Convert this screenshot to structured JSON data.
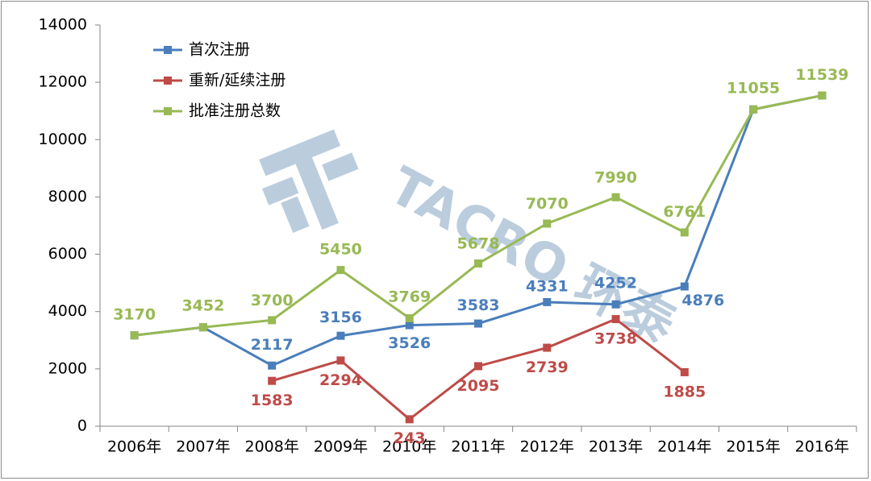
{
  "chart_data": {
    "type": "line",
    "categories": [
      "2006年",
      "2007年",
      "2008年",
      "2009年",
      "2010年",
      "2011年",
      "2012年",
      "2013年",
      "2014年",
      "2015年",
      "2016年"
    ],
    "ylim": [
      0,
      14000
    ],
    "yticks": [
      0,
      2000,
      4000,
      6000,
      8000,
      10000,
      12000,
      14000
    ],
    "grid": false,
    "legend_position": "top-left",
    "series": [
      {
        "name": "首次注册",
        "color": "#4a7ebb",
        "values": [
          3170,
          3452,
          2117,
          3156,
          3526,
          3583,
          4331,
          4252,
          4876,
          11055,
          11539
        ],
        "labels": [
          null,
          null,
          "2117",
          "3156",
          "3526",
          "3583",
          "4331",
          "4252",
          "4876",
          null,
          null
        ]
      },
      {
        "name": "重新/延续注册",
        "color": "#be4b48",
        "values": [
          null,
          null,
          1583,
          2294,
          243,
          2095,
          2739,
          3738,
          1885,
          null,
          null
        ],
        "labels": [
          null,
          null,
          "1583",
          "2294",
          "243",
          "2095",
          "2739",
          "3738",
          "1885",
          null,
          null
        ]
      },
      {
        "name": "批准注册总数",
        "color": "#98b954",
        "values": [
          3170,
          3452,
          3700,
          5450,
          3769,
          5678,
          7070,
          7990,
          6761,
          11055,
          11539
        ],
        "labels": [
          "3170",
          "3452",
          "3700",
          "5450",
          "3769",
          "5678",
          "7070",
          "7990",
          "6761",
          "11055",
          "11539"
        ]
      }
    ]
  },
  "watermark": {
    "text": "TACRO 环泰"
  }
}
